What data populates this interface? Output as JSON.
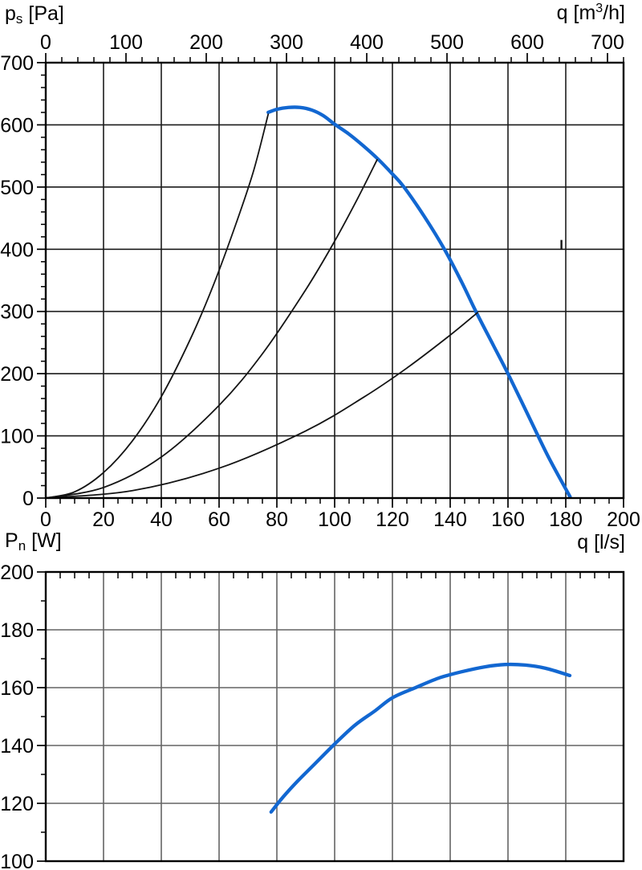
{
  "colors": {
    "background": "#ffffff",
    "curve_blue": "#1267d1",
    "curve_black": "#141414",
    "grid_pressure_chart": "#1c1c1c",
    "grid_power_chart": "#646464",
    "frame": "#000000",
    "text": "#000000"
  },
  "chart_data": [
    {
      "type": "line",
      "id": "fan-pressure-chart",
      "axes": {
        "y_left": {
          "title_pre": "p",
          "title_sub": "s",
          "title_post": "[Pa]",
          "unit": "Pa",
          "min": 0,
          "max": 700,
          "tick_labels": [
            0,
            100,
            200,
            300,
            400,
            500,
            600,
            700
          ],
          "minor_step": 20
        },
        "x_top": {
          "title_pre": "q [m",
          "title_sup": "3",
          "title_post": "/h]",
          "unit": "m3/h",
          "min": 0,
          "max": 720,
          "tick_labels": [
            0,
            100,
            200,
            300,
            400,
            500,
            600,
            700
          ],
          "minor_step": 20,
          "unit_per_ls": 3.6
        },
        "x_bottom": {
          "title": "q [l/s]",
          "unit": "l/s",
          "min": 0,
          "max": 200,
          "tick_labels": [
            0,
            20,
            40,
            60,
            80,
            100,
            120,
            140,
            160,
            180,
            200
          ],
          "minor_step": 5
        }
      },
      "series": [
        {
          "name": "fan-pressure-curve",
          "color": "curve_blue",
          "width": 4.3,
          "points": [
            [
              77,
              620
            ],
            [
              80,
              625
            ],
            [
              84,
              628
            ],
            [
              88,
              628
            ],
            [
              92,
              624
            ],
            [
              96,
              615
            ],
            [
              100,
              601
            ],
            [
              105,
              585
            ],
            [
              110,
              566
            ],
            [
              115,
              545
            ],
            [
              120,
              521
            ],
            [
              124,
              500
            ],
            [
              131,
              453
            ],
            [
              138,
              400
            ],
            [
              144,
              347
            ],
            [
              149,
              299
            ],
            [
              155,
              245
            ],
            [
              160,
              200
            ],
            [
              167,
              133
            ],
            [
              174,
              66
            ],
            [
              181.5,
              2
            ]
          ]
        },
        {
          "name": "system-curve-1",
          "color": "curve_black",
          "width": 1.8,
          "points": [
            [
              0,
              0
            ],
            [
              10,
              10
            ],
            [
              20,
              41
            ],
            [
              30,
              92
            ],
            [
              40,
              163
            ],
            [
              50,
              255
            ],
            [
              58,
              342
            ],
            [
              66,
              443
            ],
            [
              72,
              527
            ],
            [
              77,
              617
            ]
          ]
        },
        {
          "name": "system-curve-2",
          "color": "curve_black",
          "width": 1.8,
          "points": [
            [
              0,
              0
            ],
            [
              20,
              17
            ],
            [
              40,
              66
            ],
            [
              60,
              149
            ],
            [
              75,
              232
            ],
            [
              90,
              335
            ],
            [
              100,
              413
            ],
            [
              108,
              482
            ],
            [
              114.7,
              544
            ]
          ]
        },
        {
          "name": "system-curve-3",
          "color": "curve_black",
          "width": 1.8,
          "points": [
            [
              0,
              0
            ],
            [
              30,
              12
            ],
            [
              60,
              48
            ],
            [
              90,
              108
            ],
            [
              110,
              162
            ],
            [
              125,
              209
            ],
            [
              140,
              262
            ],
            [
              149.4,
              298
            ]
          ]
        }
      ],
      "annotation_mark": {
        "q_ls": 178.5,
        "p_from": 401,
        "p_to": 415
      }
    },
    {
      "type": "line",
      "id": "power-chart",
      "axes": {
        "y_left": {
          "title_pre": "P",
          "title_sub": "n",
          "title_post": "[W]",
          "unit": "W",
          "min": 100,
          "max": 200,
          "tick_labels": [
            100,
            120,
            140,
            160,
            180,
            200
          ],
          "minor_step": 10
        },
        "x_top": {
          "min": 0,
          "max": 200,
          "tick_labels": [],
          "major_step": 20,
          "minor_step": 5,
          "inward": true
        },
        "x_bottom": {
          "min": 0,
          "max": 200,
          "tick_labels": [],
          "grid_step": 20
        }
      },
      "series": [
        {
          "name": "power-curve",
          "color": "curve_blue",
          "width": 4.3,
          "points": [
            [
              78,
              117
            ],
            [
              82,
              122
            ],
            [
              87,
              127.5
            ],
            [
              93,
              133.5
            ],
            [
              100,
              140.5
            ],
            [
              107,
              147
            ],
            [
              114,
              152
            ],
            [
              120,
              156.5
            ],
            [
              128,
              160
            ],
            [
              136,
              163.3
            ],
            [
              144,
              165.5
            ],
            [
              152,
              167.2
            ],
            [
              159,
              168
            ],
            [
              166,
              167.8
            ],
            [
              173,
              166.7
            ],
            [
              181.4,
              164.2
            ]
          ]
        }
      ]
    }
  ]
}
